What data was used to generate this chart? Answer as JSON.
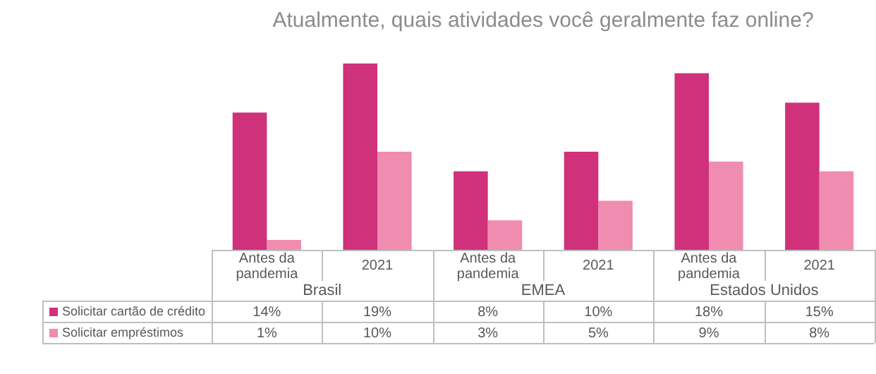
{
  "chart_data": {
    "type": "bar",
    "title": "Atualmente, quais atividades você geralmente faz online?",
    "categories": [
      "Antes da pandemia",
      "2021",
      "Antes da pandemia",
      "2021",
      "Antes da pandemia",
      "2021"
    ],
    "annotations": [
      "Brasil",
      "EMEA",
      "Estados Unidos"
    ],
    "series": [
      {
        "name": "Solicitar cartão de crédito",
        "color": "#d0317b",
        "values": [
          14,
          19,
          8,
          10,
          18,
          15
        ],
        "value_labels": [
          "14%",
          "19%",
          "8%",
          "10%",
          "18%",
          "15%"
        ]
      },
      {
        "name": "Solicitar empréstimos",
        "color": "#f08cb0",
        "values": [
          1,
          10,
          3,
          5,
          9,
          8
        ],
        "value_labels": [
          "1%",
          "10%",
          "3%",
          "5%",
          "9%",
          "8%"
        ]
      }
    ],
    "legend": "bottom left"
  }
}
